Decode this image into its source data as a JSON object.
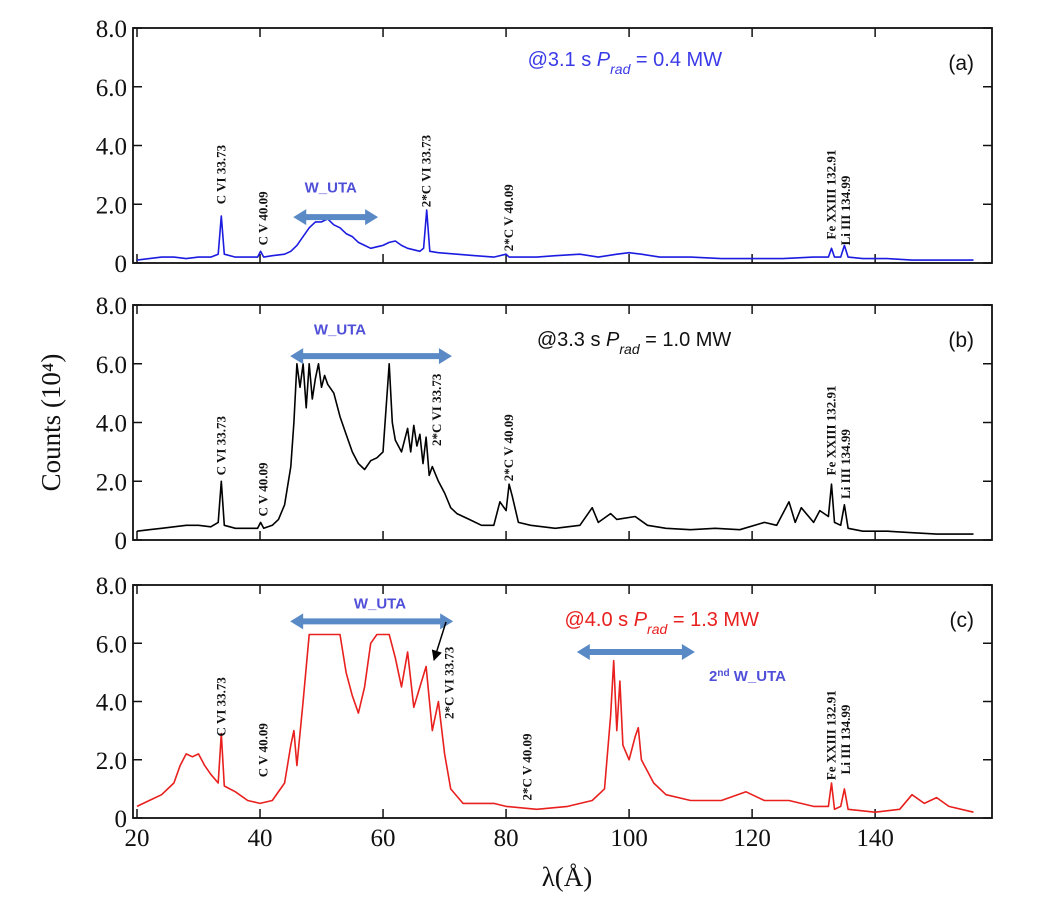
{
  "chart_data": [
    {
      "type": "line",
      "panel_label": "(a)",
      "color": "#1c1ce0",
      "annotation": {
        "prefix": "@3.1 s ",
        "symbol": "P",
        "subscript": "rad",
        "suffix": " = 0.4 MW",
        "x": 83.5,
        "y": 6.7,
        "color": "#3a3ae8"
      },
      "xlim": [
        19.35,
        159
      ],
      "ylim": [
        0,
        8
      ],
      "xticks": [
        20,
        40,
        60,
        80,
        100,
        120,
        140
      ],
      "yticks": [
        0,
        {
          "value": 2,
          "label": "2.0"
        },
        {
          "value": 4,
          "label": "4.0"
        },
        {
          "value": 6,
          "label": "6.0"
        },
        {
          "value": 8,
          "label": "8.0"
        }
      ],
      "x": [
        20,
        22,
        24,
        26,
        28,
        30,
        32,
        33.2,
        33.7,
        34.2,
        36,
        38,
        39.6,
        40.1,
        40.6,
        42,
        44,
        45,
        46,
        47,
        48,
        49,
        50,
        51,
        52,
        53,
        54,
        55,
        56,
        57,
        58,
        59,
        60,
        61,
        62,
        63,
        64,
        65,
        66,
        66.6,
        67.1,
        67.6,
        69,
        72,
        75,
        78,
        80,
        80.5,
        82,
        85,
        88,
        92,
        95,
        98,
        100,
        102,
        105,
        110,
        115,
        120,
        125,
        130,
        132.4,
        132.9,
        133.4,
        134.4,
        135,
        135.6,
        138,
        142,
        146,
        150,
        156
      ],
      "values": [
        0.1,
        0.15,
        0.2,
        0.2,
        0.15,
        0.2,
        0.2,
        0.3,
        1.6,
        0.3,
        0.2,
        0.2,
        0.2,
        0.4,
        0.2,
        0.25,
        0.3,
        0.4,
        0.6,
        0.9,
        1.2,
        1.4,
        1.4,
        1.5,
        1.3,
        1.2,
        1.0,
        0.9,
        0.7,
        0.6,
        0.5,
        0.55,
        0.6,
        0.7,
        0.75,
        0.6,
        0.5,
        0.45,
        0.4,
        0.5,
        1.8,
        0.4,
        0.35,
        0.3,
        0.25,
        0.2,
        0.3,
        0.2,
        0.2,
        0.2,
        0.25,
        0.3,
        0.2,
        0.3,
        0.35,
        0.3,
        0.2,
        0.2,
        0.15,
        0.15,
        0.15,
        0.2,
        0.2,
        0.5,
        0.2,
        0.2,
        0.6,
        0.2,
        0.15,
        0.15,
        0.1,
        0.1,
        0.1
      ],
      "line_labels": [
        {
          "text": "C VI 33.73",
          "x": 33.7,
          "y": 2.0
        },
        {
          "text": "C V 40.09",
          "x": 40.6,
          "y": 0.6
        },
        {
          "text": "2*C VI 33.73",
          "x": 67.1,
          "y": 1.9
        },
        {
          "text": "2*C V 40.09",
          "x": 80.5,
          "y": 0.4
        },
        {
          "text": "Fe XXIII 132.91",
          "x": 132.9,
          "y": 0.8
        },
        {
          "text": "Li III 134.99",
          "x": 135.3,
          "y": 0.6
        }
      ],
      "arrows": [
        {
          "label": "W_UTA",
          "x": [
            45.4,
            59.2
          ],
          "y": 1.56,
          "label_x": 51.5,
          "label_y": 2.4,
          "color": "#5a8ac6",
          "text_color": "#4f4fd8"
        }
      ]
    },
    {
      "type": "line",
      "panel_label": "(b)",
      "color": "#000000",
      "ylabel": "Counts (10⁴)",
      "annotation": {
        "prefix": "@3.3 s ",
        "symbol": "P",
        "subscript": "rad",
        "suffix": " = 1.0 MW",
        "x": 85,
        "y": 6.6,
        "color": "#111111"
      },
      "xlim": [
        19.35,
        159
      ],
      "ylim": [
        0,
        8
      ],
      "xticks": [
        20,
        40,
        60,
        80,
        100,
        120,
        140
      ],
      "yticks": [
        0,
        {
          "value": 2,
          "label": "2.0"
        },
        {
          "value": 4,
          "label": "4.0"
        },
        {
          "value": 6,
          "label": "6.0"
        },
        {
          "value": 8,
          "label": "8.0"
        }
      ],
      "x": [
        20,
        22,
        24,
        26,
        28,
        30,
        32,
        33.2,
        33.7,
        34.2,
        36,
        38,
        39.6,
        40.1,
        40.6,
        42,
        43,
        44,
        45,
        45.5,
        46,
        46.5,
        47,
        47.5,
        48,
        48.5,
        49,
        49.5,
        50,
        50.5,
        51,
        52,
        53,
        54,
        55,
        56,
        57,
        58,
        59,
        60,
        60.5,
        61,
        61.5,
        62,
        63,
        64,
        64.5,
        65,
        65.5,
        66,
        66.5,
        67,
        67.5,
        68,
        69,
        70,
        71,
        72,
        74,
        76,
        78,
        79,
        80,
        80.5,
        81,
        82,
        84,
        88,
        92,
        94,
        95,
        97,
        98,
        101,
        103,
        106,
        110,
        114,
        118,
        122,
        124,
        126,
        127,
        128,
        130,
        131,
        132.4,
        132.9,
        133.4,
        134.4,
        135,
        135.6,
        138,
        142,
        146,
        150,
        156
      ],
      "values": [
        0.3,
        0.35,
        0.4,
        0.45,
        0.5,
        0.5,
        0.45,
        0.6,
        2.0,
        0.5,
        0.4,
        0.4,
        0.4,
        0.6,
        0.4,
        0.5,
        0.7,
        1.2,
        2.5,
        4.0,
        6.0,
        5.2,
        6.0,
        4.5,
        6.0,
        4.8,
        5.5,
        6.0,
        5.2,
        5.6,
        5.3,
        5.0,
        4.2,
        3.6,
        3.0,
        2.6,
        2.4,
        2.7,
        2.8,
        3.0,
        4.5,
        6.0,
        4.0,
        3.4,
        3.0,
        3.8,
        3.0,
        3.9,
        3.2,
        3.6,
        2.6,
        3.5,
        2.2,
        2.5,
        2.0,
        1.6,
        1.1,
        0.9,
        0.7,
        0.5,
        0.5,
        1.3,
        1.0,
        1.9,
        1.5,
        0.6,
        0.5,
        0.4,
        0.5,
        1.1,
        0.6,
        0.9,
        0.7,
        0.8,
        0.5,
        0.4,
        0.35,
        0.4,
        0.35,
        0.6,
        0.5,
        1.3,
        0.6,
        1.1,
        0.6,
        1.0,
        0.8,
        1.9,
        0.6,
        0.5,
        1.2,
        0.4,
        0.3,
        0.3,
        0.25,
        0.2,
        0.2
      ],
      "line_labels": [
        {
          "text": "C VI 33.73",
          "x": 33.7,
          "y": 2.2
        },
        {
          "text": "C V 40.09",
          "x": 40.6,
          "y": 0.8
        },
        {
          "text": "2*C VI 33.73",
          "x": 68.8,
          "y": 3.2
        },
        {
          "text": "2*C V 40.09",
          "x": 80.5,
          "y": 2.0
        },
        {
          "text": "Fe XXIII 132.91",
          "x": 132.9,
          "y": 2.2
        },
        {
          "text": "Li III 134.99",
          "x": 135.3,
          "y": 1.4
        }
      ],
      "arrows": [
        {
          "label": "W_UTA",
          "x": [
            44.9,
            71.2
          ],
          "y": 6.26,
          "label_x": 53,
          "label_y": 7.0,
          "color": "#5a8ac6",
          "text_color": "#4f4fd8"
        }
      ]
    },
    {
      "type": "line",
      "panel_label": "(c)",
      "color": "#e8201e",
      "xlabel": "λ(Å)",
      "annotation": {
        "prefix": "@4.0 s ",
        "symbol": "P",
        "subscript": "rad",
        "suffix": " = 1.3 MW",
        "x": 89.5,
        "y": 6.6,
        "color": "#e8201e"
      },
      "xlim": [
        19.35,
        159
      ],
      "ylim": [
        0,
        8
      ],
      "xticks": [
        20,
        40,
        60,
        80,
        100,
        120,
        140
      ],
      "yticks": [
        0,
        {
          "value": 2,
          "label": "2.0"
        },
        {
          "value": 4,
          "label": "4.0"
        },
        {
          "value": 6,
          "label": "6.0"
        },
        {
          "value": 8,
          "label": "8.0"
        }
      ],
      "x": [
        20,
        22,
        24,
        26,
        27,
        28,
        29,
        30,
        31,
        32,
        33.2,
        33.7,
        34.2,
        36,
        38,
        40,
        42,
        44,
        45,
        45.5,
        46,
        47,
        48,
        53,
        54,
        55,
        56,
        57,
        58,
        59,
        61,
        62,
        63,
        64,
        65,
        66,
        67,
        68,
        69,
        70,
        71,
        73,
        78,
        80,
        85,
        90,
        94,
        96,
        97,
        97.5,
        98,
        98.5,
        99,
        100,
        101,
        101.5,
        102,
        104,
        106,
        110,
        115,
        119,
        122,
        126,
        130,
        132.4,
        132.9,
        133.4,
        134.4,
        135,
        135.6,
        140,
        144,
        146,
        148,
        150,
        152,
        156
      ],
      "values": [
        0.4,
        0.6,
        0.8,
        1.2,
        1.8,
        2.2,
        2.1,
        2.2,
        1.8,
        1.5,
        1.2,
        2.9,
        1.1,
        0.9,
        0.6,
        0.5,
        0.6,
        1.2,
        2.5,
        3.0,
        1.8,
        4.0,
        6.3,
        6.3,
        5.0,
        4.2,
        3.6,
        4.5,
        6.0,
        6.3,
        6.3,
        5.5,
        4.5,
        5.7,
        3.8,
        4.5,
        5.2,
        3.0,
        4.0,
        2.2,
        1.0,
        0.5,
        0.5,
        0.4,
        0.3,
        0.4,
        0.6,
        1.0,
        3.5,
        5.4,
        3.0,
        4.7,
        2.5,
        2.0,
        2.8,
        3.1,
        2.0,
        1.2,
        0.8,
        0.6,
        0.6,
        0.9,
        0.6,
        0.6,
        0.4,
        0.4,
        1.2,
        0.3,
        0.4,
        1.0,
        0.3,
        0.2,
        0.3,
        0.8,
        0.5,
        0.7,
        0.4,
        0.2
      ],
      "line_labels": [
        {
          "text": "C VI 33.73",
          "x": 33.7,
          "y": 2.8
        },
        {
          "text": "C V 40.09",
          "x": 40.6,
          "y": 1.4
        },
        {
          "text": "2*C VI 33.73",
          "x": 70.8,
          "y": 3.4
        },
        {
          "text": "2*C V 40.09",
          "x": 83.5,
          "y": 0.6
        },
        {
          "text": "Fe XXIII 132.91",
          "x": 132.9,
          "y": 1.3
        },
        {
          "text": "Li III 134.99",
          "x": 135.3,
          "y": 1.5
        }
      ],
      "arrows": [
        {
          "label": "W_UTA",
          "x": [
            44.9,
            71.4
          ],
          "y": 6.75,
          "label_x": 59.5,
          "label_y": 7.2,
          "color": "#5a8ac6",
          "text_color": "#4f4fd8"
        },
        {
          "label": "2",
          "sup": "nd",
          "rest": " W_UTA",
          "x": [
            91.5,
            110.7
          ],
          "y": 5.7,
          "label_x": 113,
          "label_y": 4.7,
          "color": "#5a8ac6",
          "text_color": "#4f4fd8"
        }
      ]
    }
  ]
}
